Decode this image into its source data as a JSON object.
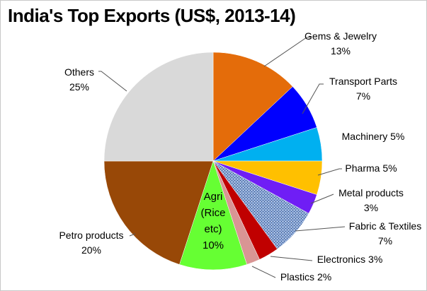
{
  "chart_data": {
    "type": "pie",
    "title": "India's Top Exports (US$, 2013-14)",
    "start": "12 o'clock, clockwise",
    "slices": [
      {
        "label": "Gems & Jewelry",
        "value": 13,
        "pct": "13%",
        "color": "#E46C0A"
      },
      {
        "label": "Transport Parts",
        "value": 7,
        "pct": "7%",
        "color": "#0000FF"
      },
      {
        "label": "Machinery",
        "value": 5,
        "pct": "5%",
        "color": "#00B0F0"
      },
      {
        "label": "Pharma",
        "value": 5,
        "pct": "5%",
        "color": "#FFC000"
      },
      {
        "label": "Metal products",
        "value": 3,
        "pct": "3%",
        "color": "#6F1EF5"
      },
      {
        "label": "Fabric & Textiles",
        "value": 7,
        "pct": "7%",
        "color": "#8DA9D6",
        "pattern": "textured"
      },
      {
        "label": "Electronics",
        "value": 3,
        "pct": "3%",
        "color": "#C00000"
      },
      {
        "label": "Plastics",
        "value": 2,
        "pct": "2%",
        "color": "#D99594"
      },
      {
        "label": "Agri (Rice etc)",
        "value": 10,
        "pct": "10%",
        "color": "#66FF33"
      },
      {
        "label": "Petro products",
        "value": 20,
        "pct": "20%",
        "color": "#984807"
      },
      {
        "label": "Others",
        "value": 25,
        "pct": "25%",
        "color": "#D9D9D9"
      }
    ],
    "legend": "none (data labels)"
  },
  "labels": {
    "gems": [
      "Gems & Jewelry",
      "13%"
    ],
    "transport": [
      "Transport Parts",
      "7%"
    ],
    "machinery": "Machinery 5%",
    "pharma": "Pharma 5%",
    "metal": [
      "Metal products",
      "3%"
    ],
    "fabric": [
      "Fabric & Textiles",
      "7%"
    ],
    "electronics": "Electronics 3%",
    "plastics": "Plastics 2%",
    "agri": [
      "Agri",
      "(Rice",
      "etc)",
      "10%"
    ],
    "petro": [
      "Petro products",
      "20%"
    ],
    "others": [
      "Others",
      "25%"
    ]
  }
}
